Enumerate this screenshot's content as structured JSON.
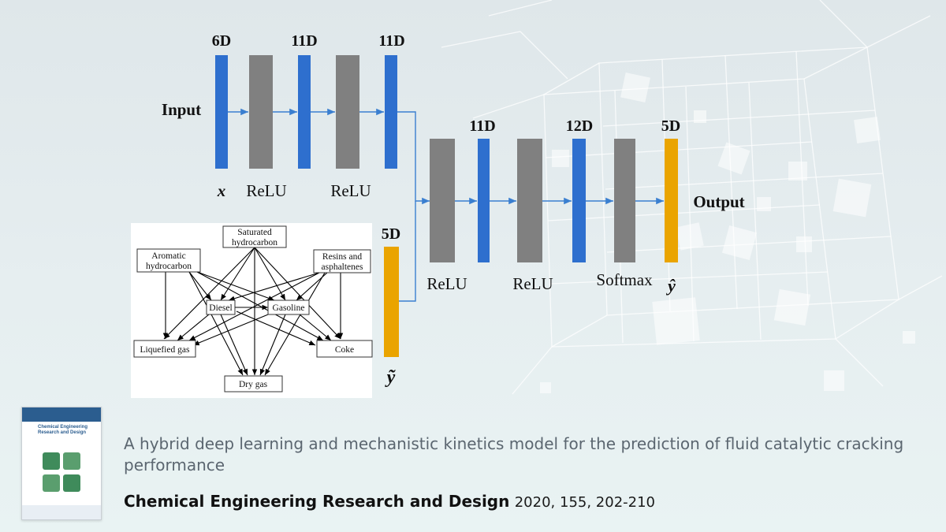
{
  "network": {
    "input_label": "Input",
    "output_label": "Output",
    "dims": {
      "d1": "6D",
      "d2": "11D",
      "d3": "11D",
      "d4": "11D",
      "d5": "12D",
      "d6": "5D",
      "d_feedback": "5D"
    },
    "layer_labels": {
      "x": "x",
      "relu1": "ReLU",
      "relu2": "ReLU",
      "relu3": "ReLU",
      "relu4": "ReLU",
      "softmax": "Softmax",
      "yhat": "ŷ",
      "ytilde": "ỹ"
    },
    "colors": {
      "blue": "#2e6fce",
      "gray": "#808080",
      "orange": "#eaa400"
    }
  },
  "lumping": {
    "nodes": {
      "saturated": "Saturated hydrocarbon",
      "aromatic": "Aromatic hydrocarbon",
      "resins": "Resins and asphaltenes",
      "diesel": "Diesel",
      "gasoline": "Gasoline",
      "lpg": "Liquefied gas",
      "coke": "Coke",
      "dry_gas": "Dry gas"
    }
  },
  "publication": {
    "title": "A hybrid deep learning and mechanistic kinetics model for the prediction of fluid catalytic cracking performance",
    "journal": "Chemical Engineering Research and Design",
    "ref": "2020, 155, 202-210",
    "cover_title": "Chemical Engineering Research and Design"
  }
}
